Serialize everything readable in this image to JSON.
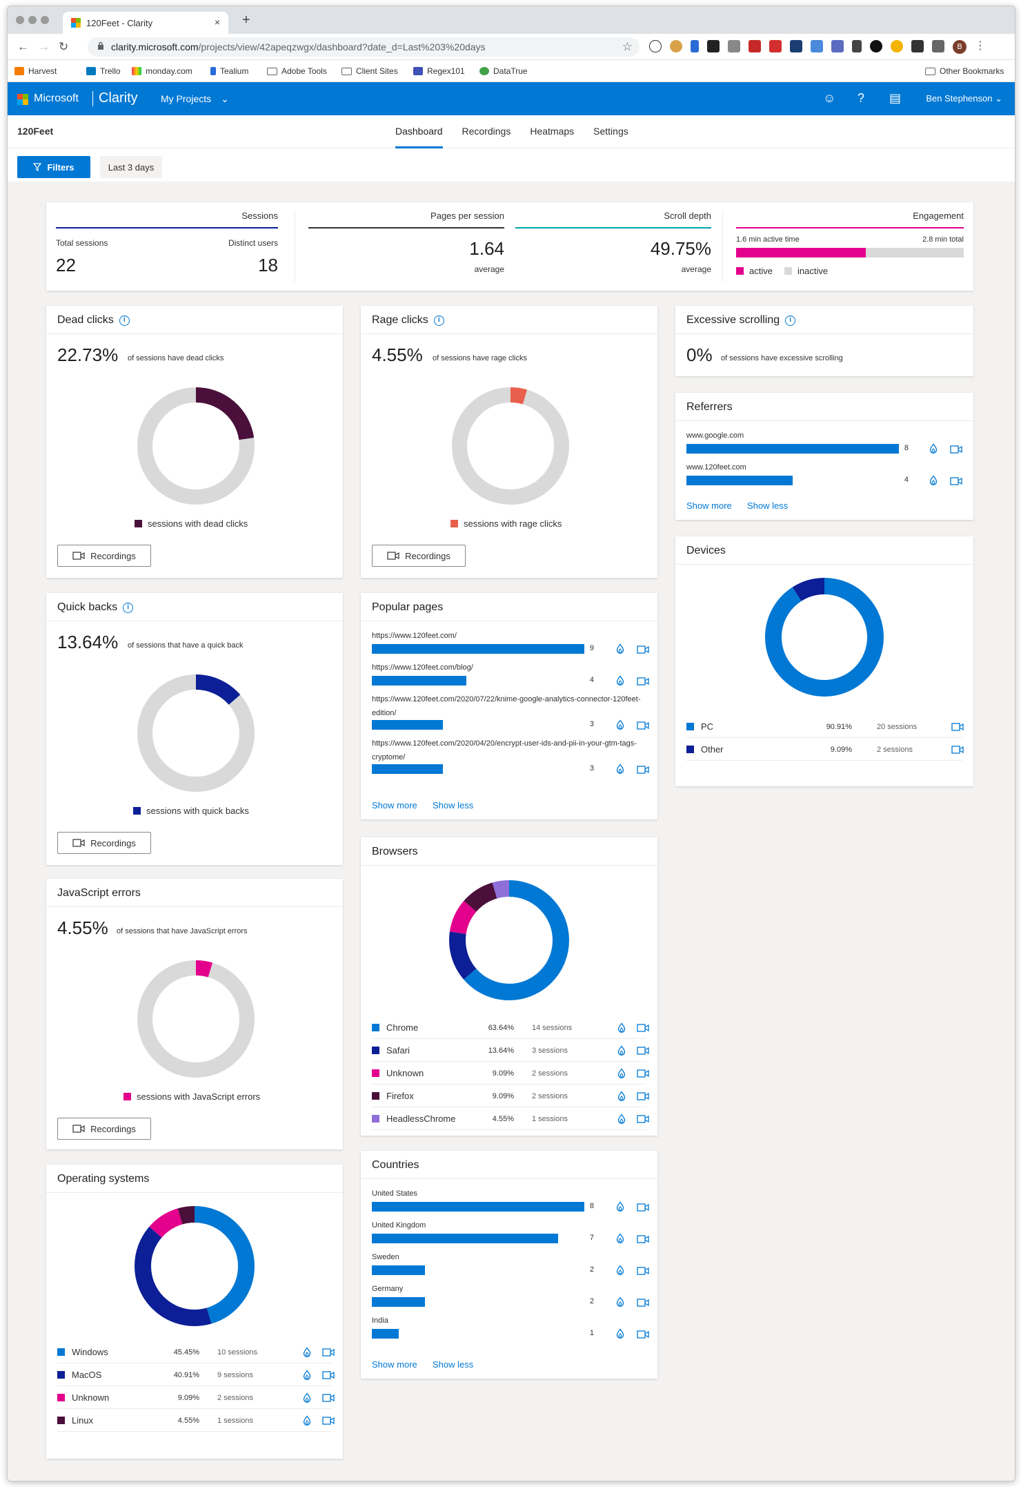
{
  "browser": {
    "tab_title": "120Feet - Clarity",
    "tab_close": "×",
    "new_tab": "+",
    "url_host": "clarity.microsoft.com",
    "url_path": "/projects/view/42apeqzwgx/dashboard?date_d=Last%203%20days",
    "bookmarks": [
      "Harvest",
      "Trello",
      "monday.com",
      "Tealium",
      "Adobe Tools",
      "Client Sites",
      "Regex101",
      "DataTrue"
    ],
    "other_bookmarks": "Other Bookmarks",
    "profile_initial": "B"
  },
  "app": {
    "brand": "Microsoft",
    "product": "Clarity",
    "projects_menu": "My Projects",
    "user": "Ben Stephenson",
    "project_name": "120Feet",
    "tabs": [
      "Dashboard",
      "Recordings",
      "Heatmaps",
      "Settings"
    ],
    "active_tab": "Dashboard",
    "filters_label": "Filters",
    "date_range": "Last 3 days"
  },
  "summary": {
    "sessions_head": "Sessions",
    "total_sessions_label": "Total sessions",
    "total_sessions": "22",
    "distinct_users_label": "Distinct users",
    "distinct_users": "18",
    "pages_head": "Pages per session",
    "pages_value": "1.64",
    "pages_sub": "average",
    "scroll_head": "Scroll depth",
    "scroll_value": "49.75%",
    "scroll_sub": "average",
    "engagement_head": "Engagement",
    "active_time": "1.6 min active time",
    "total_time": "2.8 min total",
    "active_fraction": 0.571,
    "legend_active": "active",
    "legend_inactive": "inactive"
  },
  "dead_clicks": {
    "title": "Dead clicks",
    "value": "22.73%",
    "desc": "of sessions have dead clicks",
    "fraction": 0.2273,
    "color": "#4a0f3a",
    "legend": "sessions with dead clicks",
    "button": "Recordings"
  },
  "rage_clicks": {
    "title": "Rage clicks",
    "value": "4.55%",
    "desc": "of sessions have rage clicks",
    "fraction": 0.0455,
    "color": "#e8604c",
    "legend": "sessions with rage clicks",
    "button": "Recordings"
  },
  "excessive_scrolling": {
    "title": "Excessive scrolling",
    "value": "0%",
    "desc": "of sessions have excessive scrolling"
  },
  "referrers": {
    "title": "Referrers",
    "items": [
      {
        "label": "www.google.com",
        "count": 8
      },
      {
        "label": "www.120feet.com",
        "count": 4
      }
    ],
    "max": 8,
    "show_more": "Show more",
    "show_less": "Show less"
  },
  "devices": {
    "title": "Devices",
    "rows": [
      {
        "name": "PC",
        "percent": "90.91%",
        "sessions": "20 sessions",
        "value": 90.91,
        "color": "#0078d4"
      },
      {
        "name": "Other",
        "percent": "9.09%",
        "sessions": "2 sessions",
        "value": 9.09,
        "color": "#0c1f96"
      }
    ]
  },
  "quick_backs": {
    "title": "Quick backs",
    "value": "13.64%",
    "desc": "of sessions that have a quick back",
    "fraction": 0.1364,
    "color": "#0c1f96",
    "legend": "sessions with quick backs",
    "button": "Recordings"
  },
  "popular_pages": {
    "title": "Popular pages",
    "items": [
      {
        "label": "https://www.120feet.com/",
        "count": 9
      },
      {
        "label": "https://www.120feet.com/blog/",
        "count": 4
      },
      {
        "label": "https://www.120feet.com/2020/07/22/knime-google-analytics-connector-120feet-edition/",
        "count": 3
      },
      {
        "label": "https://www.120feet.com/2020/04/20/encrypt-user-ids-and-pii-in-your-gtm-tags-cryptome/",
        "count": 3
      }
    ],
    "max": 9,
    "show_more": "Show more",
    "show_less": "Show less"
  },
  "js_errors": {
    "title": "JavaScript errors",
    "value": "4.55%",
    "desc": "of sessions that have JavaScript errors",
    "fraction": 0.0455,
    "color": "#e3008c",
    "legend": "sessions with JavaScript errors",
    "button": "Recordings"
  },
  "browsers": {
    "title": "Browsers",
    "rows": [
      {
        "name": "Chrome",
        "percent": "63.64%",
        "sessions": "14 sessions",
        "value": 63.64,
        "color": "#0078d4"
      },
      {
        "name": "Safari",
        "percent": "13.64%",
        "sessions": "3 sessions",
        "value": 13.64,
        "color": "#0c1f96"
      },
      {
        "name": "Unknown",
        "percent": "9.09%",
        "sessions": "2 sessions",
        "value": 9.09,
        "color": "#e3008c"
      },
      {
        "name": "Firefox",
        "percent": "9.09%",
        "sessions": "2 sessions",
        "value": 9.09,
        "color": "#4a0f3a"
      },
      {
        "name": "HeadlessChrome",
        "percent": "4.55%",
        "sessions": "1 sessions",
        "value": 4.55,
        "color": "#8e6fd8"
      }
    ]
  },
  "operating_systems": {
    "title": "Operating systems",
    "rows": [
      {
        "name": "Windows",
        "percent": "45.45%",
        "sessions": "10 sessions",
        "value": 45.45,
        "color": "#0078d4"
      },
      {
        "name": "MacOS",
        "percent": "40.91%",
        "sessions": "9 sessions",
        "value": 40.91,
        "color": "#0c1f96"
      },
      {
        "name": "Unknown",
        "percent": "9.09%",
        "sessions": "2 sessions",
        "value": 9.09,
        "color": "#e3008c"
      },
      {
        "name": "Linux",
        "percent": "4.55%",
        "sessions": "1 sessions",
        "value": 4.55,
        "color": "#4a0f3a"
      }
    ]
  },
  "countries": {
    "title": "Countries",
    "items": [
      {
        "label": "United States",
        "count": 8
      },
      {
        "label": "United Kingdom",
        "count": 7
      },
      {
        "label": "Sweden",
        "count": 2
      },
      {
        "label": "Germany",
        "count": 2
      },
      {
        "label": "India",
        "count": 1
      }
    ],
    "max": 8,
    "show_more": "Show more",
    "show_less": "Show less"
  },
  "colors": {
    "accent": "#0078d4",
    "donut_track": "#d9d9d9",
    "engagement_active": "#e3008c"
  }
}
